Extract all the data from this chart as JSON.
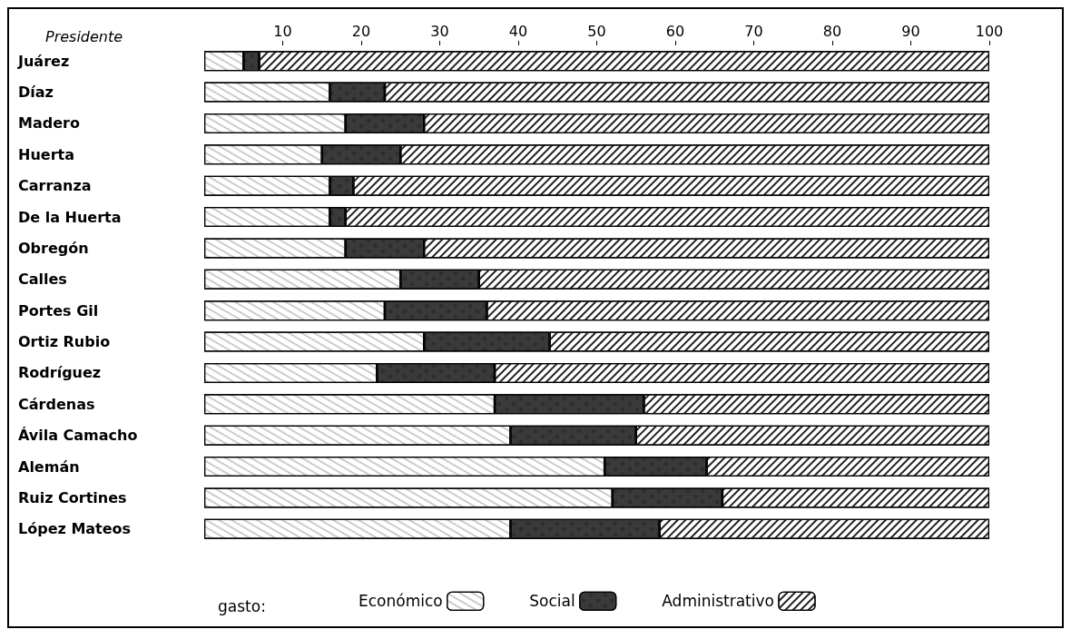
{
  "chart_data": {
    "type": "bar",
    "orientation": "horizontal",
    "stacked": true,
    "ylabel": "Presidente",
    "legend_title": "gasto:",
    "categories": [
      "Juárez",
      "Díaz",
      "Madero",
      "Huerta",
      "Carranza",
      "De la Huerta",
      "Obregón",
      "Calles",
      "Portes Gil",
      "Ortiz Rubio",
      "Rodríguez",
      "Cárdenas",
      "Ávila Camacho",
      "Alemán",
      "Ruiz Cortines",
      "López Mateos"
    ],
    "series": [
      {
        "name": "Económico",
        "color": "#ffffff",
        "values": [
          5,
          16,
          18,
          15,
          16,
          16,
          18,
          25,
          23,
          28,
          22,
          37,
          39,
          51,
          52,
          39
        ]
      },
      {
        "name": "Social",
        "color": "#3a3a3a",
        "values": [
          2,
          7,
          10,
          10,
          3,
          2,
          10,
          10,
          13,
          16,
          15,
          19,
          16,
          13,
          14,
          19
        ]
      },
      {
        "name": "Administrativo",
        "color": "#ffffff",
        "values": [
          93,
          77,
          72,
          75,
          81,
          82,
          72,
          65,
          64,
          56,
          63,
          44,
          45,
          36,
          34,
          42
        ]
      }
    ],
    "xlim": [
      0,
      100
    ],
    "xticks": [
      10,
      20,
      30,
      40,
      50,
      60,
      70,
      80,
      90,
      100
    ],
    "grid": false,
    "legend": "bottom"
  }
}
